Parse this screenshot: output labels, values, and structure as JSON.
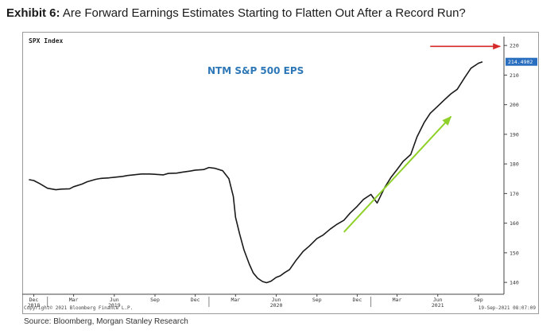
{
  "header": {
    "exhibit_label": "Exhibit 6:",
    "title": "Are Forward Earnings Estimates Starting to Flatten Out After a Record Run?"
  },
  "chart_data": {
    "type": "line",
    "ticker_label": "SPX Index",
    "series_label": "NTM S&P 500 EPS",
    "series": [
      {
        "name": "NTM S&P 500 EPS",
        "color": "#1a1a1a",
        "x": [
          "2018-11-20",
          "2018-12-01",
          "2018-12-15",
          "2019-01-01",
          "2019-01-20",
          "2019-02-01",
          "2019-02-20",
          "2019-03-01",
          "2019-03-20",
          "2019-04-01",
          "2019-04-20",
          "2019-05-01",
          "2019-05-20",
          "2019-06-01",
          "2019-06-20",
          "2019-07-01",
          "2019-07-20",
          "2019-08-01",
          "2019-08-20",
          "2019-09-01",
          "2019-09-20",
          "2019-10-01",
          "2019-10-20",
          "2019-11-01",
          "2019-11-20",
          "2019-12-01",
          "2019-12-20",
          "2020-01-01",
          "2020-01-15",
          "2020-02-01",
          "2020-02-15",
          "2020-02-25",
          "2020-03-01",
          "2020-03-10",
          "2020-03-20",
          "2020-04-01",
          "2020-04-10",
          "2020-04-20",
          "2020-05-01",
          "2020-05-10",
          "2020-05-20",
          "2020-06-01",
          "2020-06-10",
          "2020-06-20",
          "2020-07-01",
          "2020-07-15",
          "2020-08-01",
          "2020-08-15",
          "2020-09-01",
          "2020-09-15",
          "2020-10-01",
          "2020-10-15",
          "2020-11-01",
          "2020-11-15",
          "2020-12-01",
          "2020-12-15",
          "2021-01-01",
          "2021-01-15",
          "2021-02-01",
          "2021-02-15",
          "2021-03-01",
          "2021-03-15",
          "2021-04-01",
          "2021-04-15",
          "2021-05-01",
          "2021-05-15",
          "2021-06-01",
          "2021-06-15",
          "2021-07-01",
          "2021-07-15",
          "2021-08-01",
          "2021-08-15",
          "2021-09-01",
          "2021-09-10"
        ],
        "values": [
          174.7,
          174.4,
          173.3,
          171.8,
          171.3,
          171.5,
          171.6,
          172.3,
          173.2,
          174.0,
          174.8,
          175.1,
          175.3,
          175.5,
          175.8,
          176.1,
          176.4,
          176.6,
          176.6,
          176.5,
          176.3,
          176.8,
          176.9,
          177.2,
          177.6,
          177.9,
          178.1,
          178.8,
          178.5,
          177.7,
          175.0,
          169.0,
          162.0,
          156.5,
          151.0,
          146.2,
          143.2,
          141.4,
          140.3,
          139.9,
          140.4,
          141.7,
          142.2,
          143.3,
          144.3,
          147.3,
          150.5,
          152.3,
          154.8,
          156.0,
          158.0,
          159.5,
          161.0,
          163.4,
          165.7,
          168.0,
          169.7,
          166.8,
          172.0,
          175.4,
          178.1,
          180.9,
          183.2,
          189.1,
          193.9,
          197.1,
          199.5,
          201.5,
          203.7,
          205.2,
          209.2,
          212.3,
          214.0,
          214.49
        ]
      }
    ],
    "last_value_label": "214.4902",
    "ylim": [
      136,
      223
    ],
    "y_ticks": [
      140,
      150,
      160,
      170,
      180,
      190,
      200,
      210,
      220
    ],
    "xlim": [
      "2018-11-05",
      "2021-10-25"
    ],
    "x_ticks": [
      {
        "label": "Dec",
        "date": "2018-12-01",
        "year": "2018"
      },
      {
        "label": "Mar",
        "date": "2019-03-01",
        "year": ""
      },
      {
        "label": "Jun",
        "date": "2019-06-01",
        "year": "2019"
      },
      {
        "label": "Sep",
        "date": "2019-09-01",
        "year": ""
      },
      {
        "label": "Dec",
        "date": "2019-12-01",
        "year": ""
      },
      {
        "label": "Mar",
        "date": "2020-03-01",
        "year": ""
      },
      {
        "label": "Jun",
        "date": "2020-06-01",
        "year": "2020"
      },
      {
        "label": "Sep",
        "date": "2020-09-01",
        "year": ""
      },
      {
        "label": "Dec",
        "date": "2020-12-01",
        "year": ""
      },
      {
        "label": "Mar",
        "date": "2021-03-01",
        "year": ""
      },
      {
        "label": "Jun",
        "date": "2021-06-01",
        "year": "2021"
      },
      {
        "label": "Sep",
        "date": "2021-09-01",
        "year": ""
      }
    ],
    "year_separators": [
      "2019-01-01",
      "2020-01-01",
      "2021-01-01"
    ],
    "annotations": [
      {
        "type": "arrow",
        "color": "#d42a2a",
        "from": [
          "2021-05-15",
          219.7
        ],
        "to": [
          "2021-10-20",
          219.7
        ]
      },
      {
        "type": "arrow",
        "color": "#8fd12a",
        "from": [
          "2020-11-01",
          157
        ],
        "to": [
          "2021-07-01",
          196
        ]
      }
    ],
    "colors": {
      "series_label": "#2e78b8",
      "last_value_bg": "#2a6fbf"
    },
    "grid": false,
    "copyright": "Copyright© 2021 Bloomberg Finance L.P.",
    "timestamp": "19-Sep-2021 08:07:09"
  },
  "footer": {
    "source": "Source: Bloomberg, Morgan Stanley Research"
  }
}
